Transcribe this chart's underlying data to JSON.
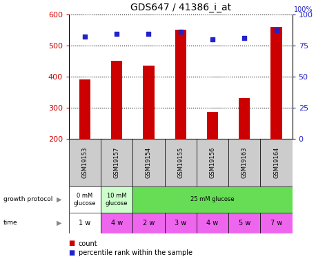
{
  "title": "GDS647 / 41386_i_at",
  "samples": [
    "GSM19153",
    "GSM19157",
    "GSM19154",
    "GSM19155",
    "GSM19156",
    "GSM19163",
    "GSM19164"
  ],
  "counts": [
    390,
    450,
    435,
    550,
    285,
    330,
    560
  ],
  "percentile_ranks": [
    82,
    84,
    84,
    86,
    80,
    81,
    87
  ],
  "ylim_left": [
    200,
    600
  ],
  "ylim_right": [
    0,
    100
  ],
  "yticks_left": [
    200,
    300,
    400,
    500,
    600
  ],
  "yticks_right": [
    0,
    25,
    50,
    75,
    100
  ],
  "bar_color": "#cc0000",
  "dot_color": "#2222cc",
  "bar_width": 0.35,
  "gp_texts": [
    "0 mM\nglucose",
    "10 mM\nglucose",
    "25 mM glucose"
  ],
  "gp_spans": [
    1,
    1,
    5
  ],
  "gp_colors": [
    "#ffffff",
    "#ccffcc",
    "#66dd55"
  ],
  "time_labels": [
    "1 w",
    "4 w",
    "2 w",
    "3 w",
    "4 w",
    "5 w",
    "7 w"
  ],
  "time_colors": [
    "#ffffff",
    "#ee66ee",
    "#ee66ee",
    "#ee66ee",
    "#ee66ee",
    "#ee66ee",
    "#ee66ee"
  ],
  "sample_bg_color": "#cccccc",
  "axis_color_left": "#cc0000",
  "axis_color_right": "#2222cc",
  "grid_color": "#000000"
}
